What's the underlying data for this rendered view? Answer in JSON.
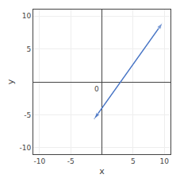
{
  "chart_data": {
    "type": "line",
    "x": [
      -1.25,
      9.75
    ],
    "values": [
      -5.666666666666667,
      9
    ],
    "color": "#4472c4",
    "xlabel": "x",
    "ylabel": "y",
    "xlim": [
      -11,
      11
    ],
    "ylim": [
      -11,
      11
    ],
    "xticks": [
      -10,
      -5,
      5,
      10
    ],
    "yticks": [
      -10,
      -5,
      5,
      10
    ],
    "grid": true,
    "annotations": [
      "0"
    ]
  }
}
